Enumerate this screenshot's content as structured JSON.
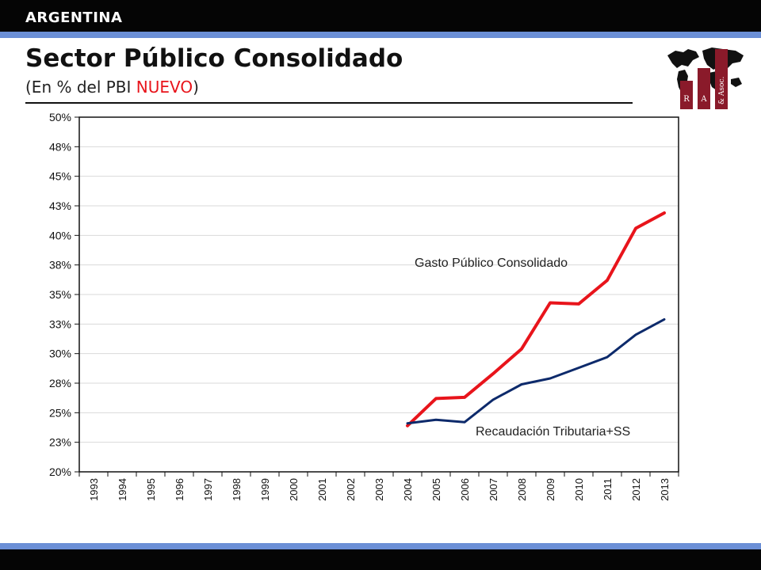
{
  "header": {
    "country": "ARGENTINA",
    "title": "Sector Público Consolidado",
    "subtitle_prefix": "(En % del PBI ",
    "subtitle_highlight": "NUEVO",
    "subtitle_suffix": ")"
  },
  "logo": {
    "icon": "world-map-bar-chart-logo",
    "letters": [
      "R",
      "A",
      "& Asoc."
    ]
  },
  "colors": {
    "accent_stripe": "#6b8fd6",
    "bar": "#050505",
    "highlight": "#e8141b",
    "gasto_line": "#e8141b",
    "recaudacion_line": "#0d2a6b"
  },
  "chart_data": {
    "type": "line",
    "title": "",
    "xlabel": "",
    "ylabel": "",
    "x": [
      "1993",
      "1994",
      "1995",
      "1996",
      "1997",
      "1998",
      "1999",
      "2000",
      "2001",
      "2002",
      "2003",
      "2004",
      "2005",
      "2006",
      "2007",
      "2008",
      "2009",
      "2010",
      "2011",
      "2012",
      "2013"
    ],
    "y_ticks": [
      20,
      22.5,
      25,
      27.5,
      30,
      32.5,
      35,
      37.5,
      40,
      42.5,
      45,
      47.5,
      50
    ],
    "y_tick_labels": [
      "20%",
      "23%",
      "25%",
      "28%",
      "30%",
      "33%",
      "35%",
      "38%",
      "40%",
      "43%",
      "45%",
      "48%",
      "50%"
    ],
    "ylim": [
      20,
      50
    ],
    "grid": true,
    "legend": "inline labels",
    "series": [
      {
        "name": "Gasto Público Consolidado",
        "color": "#e8141b",
        "values": [
          null,
          null,
          null,
          null,
          null,
          null,
          null,
          null,
          null,
          null,
          null,
          23.9,
          26.2,
          26.3,
          28.3,
          30.4,
          34.3,
          34.2,
          36.2,
          40.6,
          41.9
        ]
      },
      {
        "name": "Recaudación Tributaria+SS",
        "color": "#0d2a6b",
        "values": [
          null,
          null,
          null,
          null,
          null,
          null,
          null,
          null,
          null,
          null,
          null,
          24.1,
          24.4,
          24.2,
          26.1,
          27.4,
          27.9,
          28.8,
          29.7,
          31.6,
          32.9
        ]
      }
    ]
  }
}
